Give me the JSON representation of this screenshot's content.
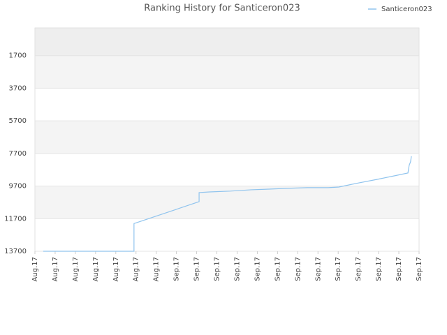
{
  "chart_data": {
    "type": "line",
    "title": "Ranking History for Santiceron023",
    "ylim": [
      13700,
      0
    ],
    "yticks": [
      1700,
      3700,
      5700,
      7700,
      9700,
      11700,
      13700
    ],
    "xlim": [
      0,
      19
    ],
    "xticks": [
      {
        "value": 0,
        "label": "Aug.17"
      },
      {
        "value": 1,
        "label": "Aug.17"
      },
      {
        "value": 2,
        "label": "Aug.17"
      },
      {
        "value": 3,
        "label": "Aug.17"
      },
      {
        "value": 4,
        "label": "Aug.17"
      },
      {
        "value": 5,
        "label": "Aug.17"
      },
      {
        "value": 6,
        "label": "Aug.17"
      },
      {
        "value": 7,
        "label": "Sep.17"
      },
      {
        "value": 8,
        "label": "Sep.17"
      },
      {
        "value": 9,
        "label": "Sep.17"
      },
      {
        "value": 10,
        "label": "Sep.17"
      },
      {
        "value": 11,
        "label": "Sep.17"
      },
      {
        "value": 12,
        "label": "Sep.17"
      },
      {
        "value": 13,
        "label": "Sep.17"
      },
      {
        "value": 14,
        "label": "Sep.17"
      },
      {
        "value": 15,
        "label": "Sep.17"
      },
      {
        "value": 16,
        "label": "Sep.17"
      },
      {
        "value": 17,
        "label": "Sep.17"
      },
      {
        "value": 18,
        "label": "Sep.17"
      },
      {
        "value": 19,
        "label": "Sep.17"
      }
    ],
    "x": [
      0.41,
      4.9,
      4.9,
      8.12,
      8.12,
      8.64,
      9.67,
      10.7,
      11.57,
      12.44,
      13.47,
      14.5,
      15.03,
      15.89,
      16.93,
      17.79,
      18.45,
      18.51,
      18.58,
      18.62
    ],
    "series": [
      {
        "name": "Santiceron023",
        "color": "#90c4ee",
        "values": [
          13700,
          13700,
          12000,
          10660,
          10100,
          10060,
          10010,
          9930,
          9890,
          9840,
          9800,
          9800,
          9760,
          9540,
          9290,
          9070,
          8900,
          8430,
          8210,
          7870
        ]
      }
    ],
    "legend": "top-right",
    "grid": true
  }
}
